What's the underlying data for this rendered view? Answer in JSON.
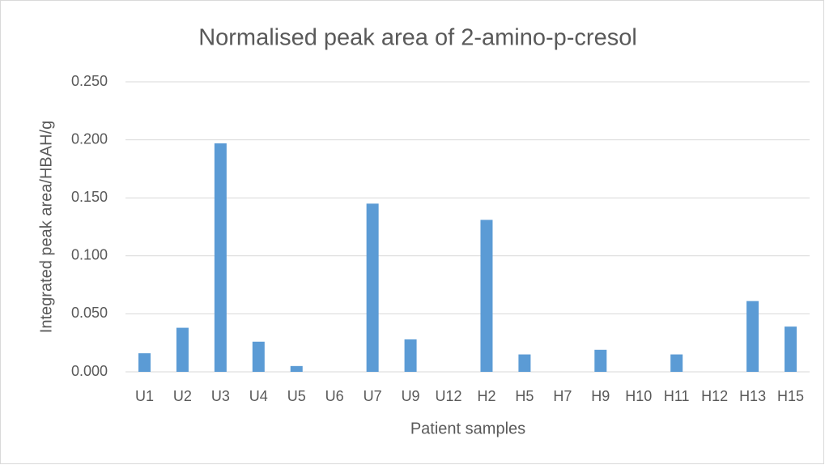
{
  "chart_data": {
    "type": "bar",
    "title": "Normalised peak area of 2-amino-p-cresol",
    "xlabel": "Patient samples",
    "ylabel": "Integrated peak area/HBAH/g",
    "categories": [
      "U1",
      "U2",
      "U3",
      "U4",
      "U5",
      "U6",
      "U7",
      "U9",
      "U12",
      "H2",
      "H5",
      "H7",
      "H9",
      "H10",
      "H11",
      "H12",
      "H13",
      "H15"
    ],
    "values": [
      0.016,
      0.038,
      0.197,
      0.026,
      0.005,
      0,
      0.145,
      0.028,
      0,
      0.131,
      0.015,
      0,
      0.019,
      0,
      0.015,
      0,
      0.061,
      0.039
    ],
    "color": "#5b9bd5",
    "ylim": [
      0,
      0.25
    ],
    "yticks": [
      {
        "value": 0,
        "label": "0.000"
      },
      {
        "value": 0.05,
        "label": "0.050"
      },
      {
        "value": 0.1,
        "label": "0.100"
      },
      {
        "value": 0.15,
        "label": "0.150"
      },
      {
        "value": 0.2,
        "label": "0.200"
      },
      {
        "value": 0.25,
        "label": "0.250"
      }
    ],
    "grid": true
  }
}
